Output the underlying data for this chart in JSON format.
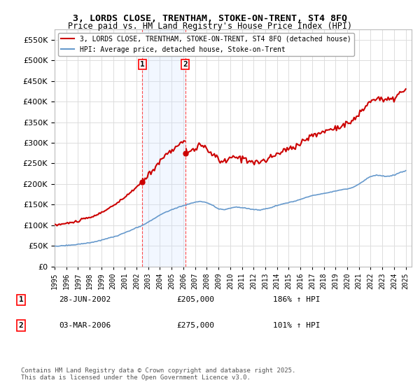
{
  "title": "3, LORDS CLOSE, TRENTHAM, STOKE-ON-TRENT, ST4 8FQ",
  "subtitle": "Price paid vs. HM Land Registry's House Price Index (HPI)",
  "ylabel": "",
  "background_color": "#ffffff",
  "plot_bg_color": "#ffffff",
  "grid_color": "#dddddd",
  "sale1_date": "28-JUN-2002",
  "sale1_price": 205000,
  "sale1_hpi": "186% ↑ HPI",
  "sale2_date": "03-MAR-2006",
  "sale2_price": 275000,
  "sale2_hpi": "101% ↑ HPI",
  "legend1": "3, LORDS CLOSE, TRENTHAM, STOKE-ON-TRENT, ST4 8FQ (detached house)",
  "legend2": "HPI: Average price, detached house, Stoke-on-Trent",
  "footer": "Contains HM Land Registry data © Crown copyright and database right 2025.\nThis data is licensed under the Open Government Licence v3.0.",
  "hpi_line_color": "#6699cc",
  "price_line_color": "#cc0000",
  "shade_color": "#cce0ff",
  "marker1_x": 2002.5,
  "marker2_x": 2006.17,
  "ylim": [
    0,
    575000
  ],
  "yticks": [
    0,
    50000,
    100000,
    150000,
    200000,
    250000,
    300000,
    350000,
    400000,
    450000,
    500000,
    550000
  ]
}
